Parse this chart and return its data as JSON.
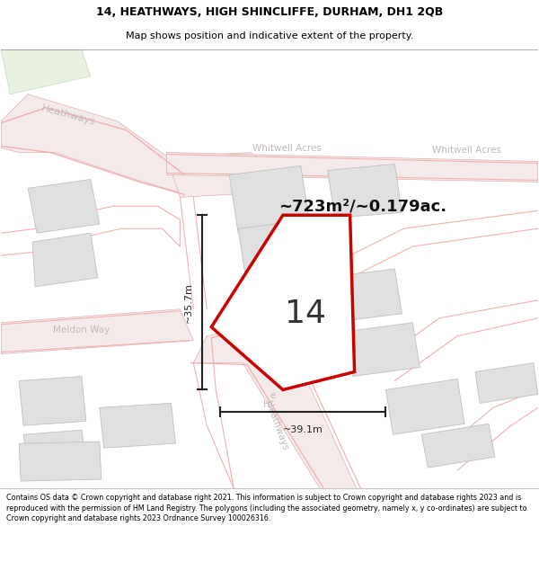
{
  "title_line1": "14, HEATHWAYS, HIGH SHINCLIFFE, DURHAM, DH1 2QB",
  "title_line2": "Map shows position and indicative extent of the property.",
  "footer": "Contains OS data © Crown copyright and database right 2021. This information is subject to Crown copyright and database rights 2023 and is reproduced with the permission of HM Land Registry. The polygons (including the associated geometry, namely x, y co-ordinates) are subject to Crown copyright and database rights 2023 Ordnance Survey 100026316.",
  "area_label": "~723m²/~0.179ac.",
  "number_label": "14",
  "dim_horizontal": "~39.1m",
  "dim_vertical": "~35.7m",
  "map_bg": "#ffffff",
  "road_line_color": "#f0b0b0",
  "building_fc": "#e0e0e0",
  "building_ec": "#c0c0c0",
  "property_fc": "#ffffff",
  "property_ec": "#cc0000",
  "label_color": "#c0b8b8",
  "dim_color": "#222222",
  "title_fs": 9,
  "subtitle_fs": 8,
  "footer_fs": 5.8
}
